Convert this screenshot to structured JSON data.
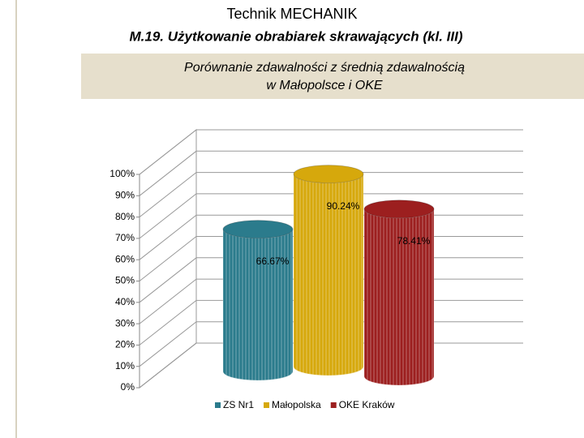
{
  "header": {
    "title": "Technik MECHANIK",
    "subtitle": "M.19. Użytkowanie obrabiarek skrawających (kl. III)"
  },
  "chart_data": {
    "type": "cylinder",
    "title": [
      "Porównanie zdawalności z średnią zdawalnością",
      "w Małopolsce i OKE"
    ],
    "series": [
      {
        "name": "ZS Nr1",
        "color": "#2b7b8c",
        "values": [
          66.67
        ],
        "value_labels": [
          "66.67%"
        ]
      },
      {
        "name": "Małopolska",
        "color": "#d6a80c",
        "values": [
          90.24
        ],
        "value_labels": [
          "90.24%"
        ]
      },
      {
        "name": "OKE Kraków",
        "color": "#9c1f1f",
        "values": [
          78.41
        ],
        "value_labels": [
          "78.41%"
        ]
      }
    ],
    "ylim": [
      0,
      100
    ],
    "yticks": [
      {
        "value": 0,
        "label": "0%"
      },
      {
        "value": 10,
        "label": "10%"
      },
      {
        "value": 20,
        "label": "20%"
      },
      {
        "value": 30,
        "label": "30%"
      },
      {
        "value": 40,
        "label": "40%"
      },
      {
        "value": 50,
        "label": "50%"
      },
      {
        "value": 60,
        "label": "60%"
      },
      {
        "value": 70,
        "label": "70%"
      },
      {
        "value": 80,
        "label": "80%"
      },
      {
        "value": 90,
        "label": "90%"
      },
      {
        "value": 100,
        "label": "100%"
      }
    ],
    "grid": true
  }
}
